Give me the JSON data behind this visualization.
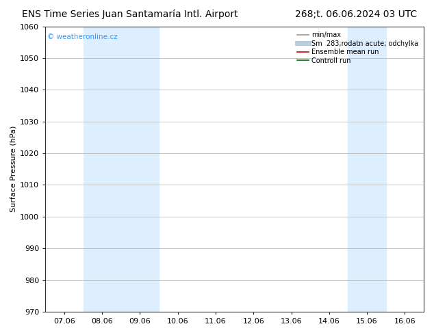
{
  "title_left": "ENS Time Series Juan Santamaría Intl. Airport",
  "title_right": "268;t. 06.06.2024 03 UTC",
  "ylabel": "Surface Pressure (hPa)",
  "xlim_dates": [
    "07.06",
    "08.06",
    "09.06",
    "10.06",
    "11.06",
    "12.06",
    "13.06",
    "14.06",
    "15.06",
    "16.06"
  ],
  "ylim": [
    970,
    1060
  ],
  "yticks": [
    970,
    980,
    990,
    1000,
    1010,
    1020,
    1030,
    1040,
    1050,
    1060
  ],
  "shaded_regions": [
    {
      "xstart": 1.0,
      "xend": 3.0,
      "color": "#ddeeff"
    },
    {
      "xstart": 8.0,
      "xend": 9.0,
      "color": "#ddeeff"
    }
  ],
  "watermark": "© weatheronline.cz",
  "watermark_color": "#3399ff",
  "legend_items": [
    {
      "label": "min/max",
      "color": "#999999",
      "lw": 1.2,
      "ls": "-"
    },
    {
      "label": "Sm  283;rodatn acute; odchylka",
      "color": "#bbccdd",
      "lw": 5,
      "ls": "-"
    },
    {
      "label": "Ensemble mean run",
      "color": "#cc0000",
      "lw": 1.2,
      "ls": "-"
    },
    {
      "label": "Controll run",
      "color": "#006600",
      "lw": 1.2,
      "ls": "-"
    }
  ],
  "bg_color": "#ffffff",
  "plot_bg_color": "#ffffff",
  "grid_color": "#bbbbbb",
  "title_fontsize": 10,
  "axis_label_fontsize": 8,
  "tick_fontsize": 8
}
